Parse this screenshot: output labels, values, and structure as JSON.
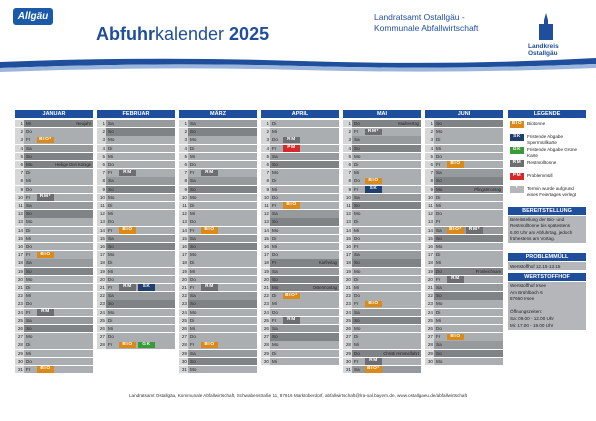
{
  "header": {
    "logo": "Allgäu",
    "title_bold": "Abfuhr",
    "title_rest": "kalender",
    "year": "2025",
    "org_line1": "Landratsamt Ostallgäu -",
    "org_line2": "Kommunale Abfallwirtschaft",
    "district_line1": "Landkreis",
    "district_line2": "Ostallgäu"
  },
  "months": [
    {
      "name": "JANUAR",
      "days": [
        {
          "d": "1",
          "w": "Mi",
          "note": "Neujahr"
        },
        {
          "d": "2",
          "w": "Do"
        },
        {
          "d": "3",
          "w": "Fr",
          "tags": [
            "BIO*"
          ]
        },
        {
          "d": "4",
          "w": "Sa"
        },
        {
          "d": "5",
          "w": "So"
        },
        {
          "d": "6",
          "w": "Mo",
          "note": "Heilige Drei Könige"
        },
        {
          "d": "7",
          "w": "Di"
        },
        {
          "d": "8",
          "w": "Mi"
        },
        {
          "d": "9",
          "w": "Do"
        },
        {
          "d": "10",
          "w": "Fr",
          "tags": [
            "RM*"
          ]
        },
        {
          "d": "11",
          "w": "Sa"
        },
        {
          "d": "12",
          "w": "So"
        },
        {
          "d": "13",
          "w": "Mo"
        },
        {
          "d": "14",
          "w": "Di"
        },
        {
          "d": "15",
          "w": "Mi"
        },
        {
          "d": "16",
          "w": "Do"
        },
        {
          "d": "17",
          "w": "Fr",
          "tags": [
            "BIO"
          ]
        },
        {
          "d": "18",
          "w": "Sa"
        },
        {
          "d": "19",
          "w": "So"
        },
        {
          "d": "20",
          "w": "Mo"
        },
        {
          "d": "21",
          "w": "Di"
        },
        {
          "d": "22",
          "w": "Mi"
        },
        {
          "d": "23",
          "w": "Do"
        },
        {
          "d": "24",
          "w": "Fr",
          "tags": [
            "RM"
          ]
        },
        {
          "d": "25",
          "w": "Sa"
        },
        {
          "d": "26",
          "w": "So"
        },
        {
          "d": "27",
          "w": "Mo"
        },
        {
          "d": "28",
          "w": "Di"
        },
        {
          "d": "29",
          "w": "Mi"
        },
        {
          "d": "30",
          "w": "Do"
        },
        {
          "d": "31",
          "w": "Fr",
          "tags": [
            "BIO"
          ]
        }
      ]
    },
    {
      "name": "FEBRUAR",
      "days": [
        {
          "d": "1",
          "w": "Sa"
        },
        {
          "d": "2",
          "w": "So"
        },
        {
          "d": "3",
          "w": "Mo"
        },
        {
          "d": "4",
          "w": "Di"
        },
        {
          "d": "5",
          "w": "Mi"
        },
        {
          "d": "6",
          "w": "Do"
        },
        {
          "d": "7",
          "w": "Fr",
          "tags": [
            "RM"
          ]
        },
        {
          "d": "8",
          "w": "Sa"
        },
        {
          "d": "9",
          "w": "So"
        },
        {
          "d": "10",
          "w": "Mo"
        },
        {
          "d": "11",
          "w": "Di"
        },
        {
          "d": "12",
          "w": "Mi"
        },
        {
          "d": "13",
          "w": "Do"
        },
        {
          "d": "14",
          "w": "Fr",
          "tags": [
            "BIO"
          ]
        },
        {
          "d": "15",
          "w": "Sa"
        },
        {
          "d": "16",
          "w": "So"
        },
        {
          "d": "17",
          "w": "Mo"
        },
        {
          "d": "18",
          "w": "Di"
        },
        {
          "d": "19",
          "w": "Mi"
        },
        {
          "d": "20",
          "w": "Do"
        },
        {
          "d": "21",
          "w": "Fr",
          "tags": [
            "RM",
            "SK"
          ]
        },
        {
          "d": "22",
          "w": "Sa"
        },
        {
          "d": "23",
          "w": "So"
        },
        {
          "d": "24",
          "w": "Mo"
        },
        {
          "d": "25",
          "w": "Di"
        },
        {
          "d": "26",
          "w": "Mi"
        },
        {
          "d": "27",
          "w": "Do"
        },
        {
          "d": "28",
          "w": "Fr",
          "tags": [
            "BIO",
            "GK"
          ]
        }
      ]
    },
    {
      "name": "MÄRZ",
      "days": [
        {
          "d": "1",
          "w": "Sa"
        },
        {
          "d": "2",
          "w": "So"
        },
        {
          "d": "3",
          "w": "Mo"
        },
        {
          "d": "4",
          "w": "Di"
        },
        {
          "d": "5",
          "w": "Mi"
        },
        {
          "d": "6",
          "w": "Do"
        },
        {
          "d": "7",
          "w": "Fr",
          "tags": [
            "RM"
          ]
        },
        {
          "d": "8",
          "w": "Sa"
        },
        {
          "d": "9",
          "w": "So"
        },
        {
          "d": "10",
          "w": "Mo"
        },
        {
          "d": "11",
          "w": "Di"
        },
        {
          "d": "12",
          "w": "Mi"
        },
        {
          "d": "13",
          "w": "Do"
        },
        {
          "d": "14",
          "w": "Fr",
          "tags": [
            "BIO"
          ]
        },
        {
          "d": "15",
          "w": "Sa"
        },
        {
          "d": "16",
          "w": "So"
        },
        {
          "d": "17",
          "w": "Mo"
        },
        {
          "d": "18",
          "w": "Di"
        },
        {
          "d": "19",
          "w": "Mi"
        },
        {
          "d": "20",
          "w": "Do"
        },
        {
          "d": "21",
          "w": "Fr",
          "tags": [
            "RM"
          ]
        },
        {
          "d": "22",
          "w": "Sa"
        },
        {
          "d": "23",
          "w": "So"
        },
        {
          "d": "24",
          "w": "Mo"
        },
        {
          "d": "25",
          "w": "Di"
        },
        {
          "d": "26",
          "w": "Mi"
        },
        {
          "d": "27",
          "w": "Do"
        },
        {
          "d": "28",
          "w": "Fr",
          "tags": [
            "BIO"
          ]
        },
        {
          "d": "29",
          "w": "Sa"
        },
        {
          "d": "30",
          "w": "So"
        },
        {
          "d": "31",
          "w": "Mo"
        }
      ]
    },
    {
      "name": "APRIL",
      "days": [
        {
          "d": "1",
          "w": "Di"
        },
        {
          "d": "2",
          "w": "Mi"
        },
        {
          "d": "3",
          "w": "Do",
          "tags": [
            "RM"
          ]
        },
        {
          "d": "4",
          "w": "Fr",
          "tags": [
            "PM"
          ]
        },
        {
          "d": "5",
          "w": "Sa"
        },
        {
          "d": "6",
          "w": "So"
        },
        {
          "d": "7",
          "w": "Mo"
        },
        {
          "d": "8",
          "w": "Di"
        },
        {
          "d": "9",
          "w": "Mi"
        },
        {
          "d": "10",
          "w": "Do"
        },
        {
          "d": "11",
          "w": "Fr",
          "tags": [
            "BIO"
          ]
        },
        {
          "d": "12",
          "w": "Sa"
        },
        {
          "d": "13",
          "w": "So"
        },
        {
          "d": "14",
          "w": "Mo"
        },
        {
          "d": "15",
          "w": "Di"
        },
        {
          "d": "16",
          "w": "Mi"
        },
        {
          "d": "17",
          "w": "Do"
        },
        {
          "d": "18",
          "w": "Fr",
          "note": "Karfreitag"
        },
        {
          "d": "19",
          "w": "Sa"
        },
        {
          "d": "20",
          "w": "So"
        },
        {
          "d": "21",
          "w": "Mo",
          "note": "Ostermontag"
        },
        {
          "d": "22",
          "w": "Di",
          "tags": [
            "BIO*"
          ]
        },
        {
          "d": "23",
          "w": "Mi"
        },
        {
          "d": "24",
          "w": "Do"
        },
        {
          "d": "25",
          "w": "Fr",
          "tags": [
            "RM"
          ]
        },
        {
          "d": "26",
          "w": "Sa"
        },
        {
          "d": "27",
          "w": "So"
        },
        {
          "d": "28",
          "w": "Mo"
        },
        {
          "d": "29",
          "w": "Di"
        },
        {
          "d": "30",
          "w": "Mi"
        }
      ]
    },
    {
      "name": "MAI",
      "days": [
        {
          "d": "1",
          "w": "Do",
          "note": "Maifeiertag"
        },
        {
          "d": "2",
          "w": "Fr",
          "tags": [
            "RM*"
          ]
        },
        {
          "d": "3",
          "w": "Sa"
        },
        {
          "d": "4",
          "w": "So"
        },
        {
          "d": "5",
          "w": "Mo"
        },
        {
          "d": "6",
          "w": "Di"
        },
        {
          "d": "7",
          "w": "Mi"
        },
        {
          "d": "8",
          "w": "Do",
          "tags": [
            "BIO"
          ]
        },
        {
          "d": "9",
          "w": "Fr",
          "tags": [
            "SK"
          ]
        },
        {
          "d": "10",
          "w": "Sa"
        },
        {
          "d": "11",
          "w": "So"
        },
        {
          "d": "12",
          "w": "Mo"
        },
        {
          "d": "13",
          "w": "Di"
        },
        {
          "d": "14",
          "w": "Mi"
        },
        {
          "d": "15",
          "w": "Do"
        },
        {
          "d": "16",
          "w": "Fr"
        },
        {
          "d": "17",
          "w": "Sa"
        },
        {
          "d": "18",
          "w": "So"
        },
        {
          "d": "19",
          "w": "Mo"
        },
        {
          "d": "20",
          "w": "Di"
        },
        {
          "d": "21",
          "w": "Mi"
        },
        {
          "d": "22",
          "w": "Do"
        },
        {
          "d": "23",
          "w": "Fr",
          "tags": [
            "BIO"
          ]
        },
        {
          "d": "24",
          "w": "Sa"
        },
        {
          "d": "25",
          "w": "So"
        },
        {
          "d": "26",
          "w": "Mo"
        },
        {
          "d": "27",
          "w": "Di"
        },
        {
          "d": "28",
          "w": "Mi"
        },
        {
          "d": "29",
          "w": "Do",
          "note": "Christi Himmelfahrt"
        },
        {
          "d": "30",
          "w": "Fr",
          "tags": [
            "RM"
          ]
        },
        {
          "d": "31",
          "w": "Sa",
          "tags": [
            "BIO*"
          ]
        }
      ]
    },
    {
      "name": "JUNI",
      "days": [
        {
          "d": "1",
          "w": "So"
        },
        {
          "d": "2",
          "w": "Mo"
        },
        {
          "d": "3",
          "w": "Di"
        },
        {
          "d": "4",
          "w": "Mi"
        },
        {
          "d": "5",
          "w": "Do"
        },
        {
          "d": "6",
          "w": "Fr",
          "tags": [
            "BIO"
          ]
        },
        {
          "d": "7",
          "w": "Sa"
        },
        {
          "d": "8",
          "w": "So"
        },
        {
          "d": "9",
          "w": "Mo",
          "note": "Pfingstmontag"
        },
        {
          "d": "10",
          "w": "Di"
        },
        {
          "d": "11",
          "w": "Mi"
        },
        {
          "d": "12",
          "w": "Do"
        },
        {
          "d": "13",
          "w": "Fr"
        },
        {
          "d": "14",
          "w": "Sa",
          "tags": [
            "BIO*",
            "RM*"
          ]
        },
        {
          "d": "15",
          "w": "So"
        },
        {
          "d": "16",
          "w": "Mo"
        },
        {
          "d": "17",
          "w": "Di"
        },
        {
          "d": "18",
          "w": "Mi"
        },
        {
          "d": "19",
          "w": "Do",
          "note": "Fronleichnam"
        },
        {
          "d": "20",
          "w": "Fr",
          "tags": [
            "RM"
          ]
        },
        {
          "d": "21",
          "w": "Sa"
        },
        {
          "d": "22",
          "w": "So"
        },
        {
          "d": "23",
          "w": "Mo"
        },
        {
          "d": "24",
          "w": "Di"
        },
        {
          "d": "25",
          "w": "Mi"
        },
        {
          "d": "26",
          "w": "Do"
        },
        {
          "d": "27",
          "w": "Fr",
          "tags": [
            "BIO"
          ]
        },
        {
          "d": "28",
          "w": "Sa"
        },
        {
          "d": "29",
          "w": "So"
        },
        {
          "d": "30",
          "w": "Mo"
        }
      ]
    }
  ],
  "legend": {
    "title": "LEGENDE",
    "items": [
      {
        "tag": "BIO",
        "text": "Biotonne",
        "color": "#d98a1a"
      },
      {
        "tag": "SK",
        "text": "Fristende Abgabe Sperrmüllkarte",
        "color": "#1f3f6e"
      },
      {
        "tag": "GK",
        "text": "Fristende Abgabe Grüne Karte",
        "color": "#3a9a3a"
      },
      {
        "tag": "RM",
        "text": "Restmülltonne",
        "color": "#6d6e71"
      },
      {
        "tag": "PM",
        "text": "Problemmüll",
        "color": "#d42a2a"
      },
      {
        "tag": "*",
        "text": "Termin wurde aufgrund eines Feiertages verlegt",
        "color": "#b4b6b9"
      }
    ]
  },
  "bereitstellung": {
    "title": "BEREITSTELLUNG",
    "lines": [
      "Bereitstellung der Bio- und",
      "Restmülltonne bis spätestens",
      "6.00 Uhr am Abfuhrtag, jedoch",
      "frühestens am Vortag."
    ]
  },
  "problemmuell": {
    "title": "PROBLEMMÜLL",
    "text": "Wertstoffhof 12.15-13.15"
  },
  "wertstoffhof": {
    "title": "WERTSTOFFHOF",
    "lines": [
      "Wertstoffhof Irsee",
      "Am Brühlbach 6",
      "87660 Irsee",
      "",
      "Öffnungszeiten:",
      "Sa: 09.00 - 12.00 Uhr",
      "Mi: 17.00 - 19.00 Uhr"
    ]
  },
  "footer": "Landratsamt Ostallgäu, Kommunale Abfallwirtschaft, Schwabenstraße 11, 87616 Marktoberdorf, abfallwirtschaft@lra-oal.bayern.de, www.ostallgaeu.de/abfallwirtschaft"
}
